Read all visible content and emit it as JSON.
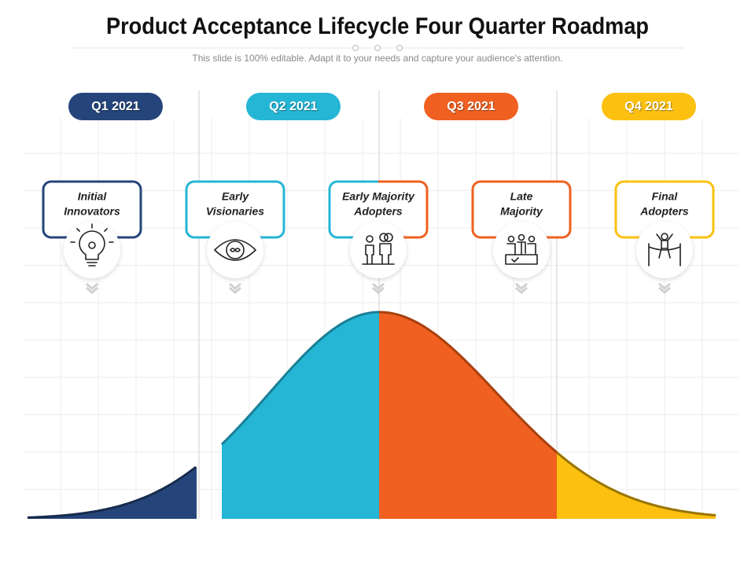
{
  "header": {
    "title": "Product Acceptance Lifecycle Four Quarter Roadmap",
    "subtitle": "This slide is 100% editable. Adapt it to your needs and capture your audience's attention."
  },
  "quarters": [
    "Q1 2021",
    "Q2 2021",
    "Q3 2021",
    "Q4 2021"
  ],
  "stages": [
    {
      "lines": [
        "Initial",
        "Innovators"
      ]
    },
    {
      "lines": [
        "Early",
        "Visionaries"
      ]
    },
    {
      "lines": [
        "Early Majority",
        "Adopters"
      ]
    },
    {
      "lines": [
        "Late",
        "Majority"
      ]
    },
    {
      "lines": [
        "Final",
        "Adopters"
      ]
    }
  ]
}
